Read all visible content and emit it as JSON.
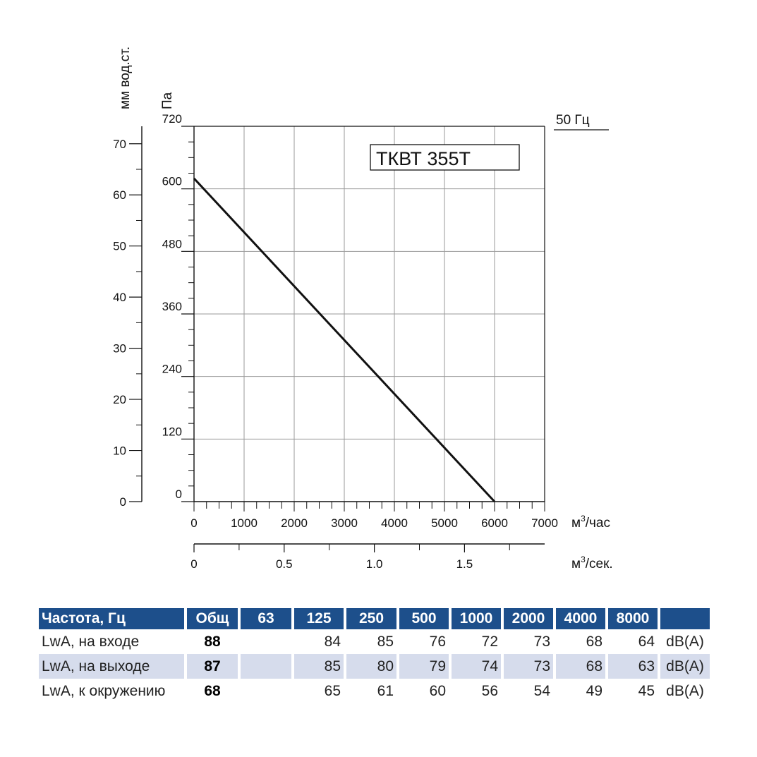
{
  "chart_data": {
    "type": "line",
    "model": "ТКВТ 355Т",
    "frequency_label": "50 Гц",
    "y_left_unit": "мм вод.ст.",
    "y_left_ticks": [
      "0",
      "10",
      "20",
      "30",
      "40",
      "50",
      "60",
      "70"
    ],
    "y_pa_unit": "Па",
    "y_pa_ticks": [
      "0",
      "120",
      "240",
      "360",
      "480",
      "600",
      "720"
    ],
    "y_pa_range": [
      0,
      720
    ],
    "x_unit_prefix": "м",
    "x_unit_exp": "3",
    "x_unit_suffix": "/час",
    "x_ticks": [
      "0",
      "1000",
      "2000",
      "3000",
      "4000",
      "5000",
      "6000",
      "7000"
    ],
    "x_range": [
      0,
      7000
    ],
    "x2_unit_prefix": "м",
    "x2_unit_exp": "3",
    "x2_unit_suffix": "/сек.",
    "x2_ticks": [
      "0",
      "0.5",
      "1.0",
      "1.5"
    ],
    "grid": true,
    "series": [
      {
        "points": [
          [
            0,
            620
          ],
          [
            6000,
            0
          ]
        ]
      }
    ]
  },
  "table": {
    "headers": [
      "Частота, Гц",
      "Общ",
      "63",
      "125",
      "250",
      "500",
      "1000",
      "2000",
      "4000",
      "8000",
      ""
    ],
    "rows": [
      {
        "label": "LwA, на входе",
        "total": "88",
        "values": [
          "",
          "84",
          "85",
          "76",
          "72",
          "73",
          "68",
          "64"
        ],
        "unit": "dB(A)"
      },
      {
        "label": "LwA, на выходе",
        "total": "87",
        "values": [
          "",
          "85",
          "80",
          "79",
          "74",
          "73",
          "68",
          "63"
        ],
        "unit": "dB(A)"
      },
      {
        "label": "LwA, к окружению",
        "total": "68",
        "values": [
          "",
          "65",
          "61",
          "60",
          "56",
          "54",
          "49",
          "45"
        ],
        "unit": "dB(A)"
      }
    ]
  }
}
